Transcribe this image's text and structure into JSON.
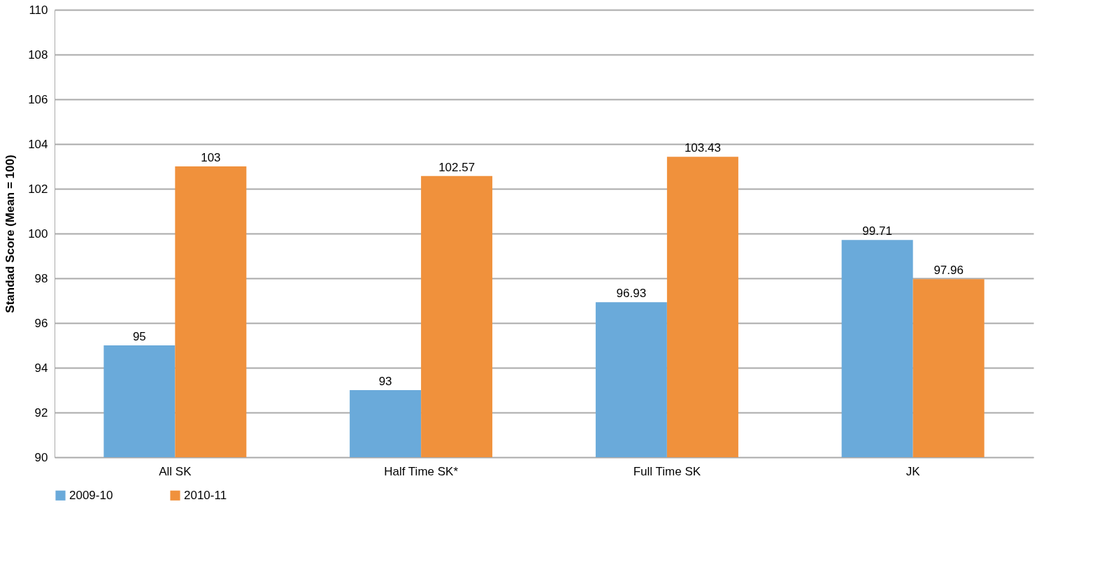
{
  "chart_data": {
    "type": "bar",
    "ylabel": "Standad Score (Mean = 100)",
    "categories": [
      "All SK",
      "Half Time SK*",
      "Full Time SK",
      "JK"
    ],
    "series": [
      {
        "name": "2009-10",
        "color": "#6aaada",
        "values": [
          95,
          93,
          96.93,
          99.71
        ]
      },
      {
        "name": "2010-11",
        "color": "#f0913c",
        "values": [
          103,
          102.57,
          103.43,
          97.96
        ]
      }
    ],
    "ylim": [
      90,
      110
    ],
    "yticks": [
      90,
      92,
      94,
      96,
      98,
      100,
      102,
      104,
      106,
      108,
      110
    ],
    "grid": "y",
    "legend": "bottom",
    "data_labels": true
  }
}
